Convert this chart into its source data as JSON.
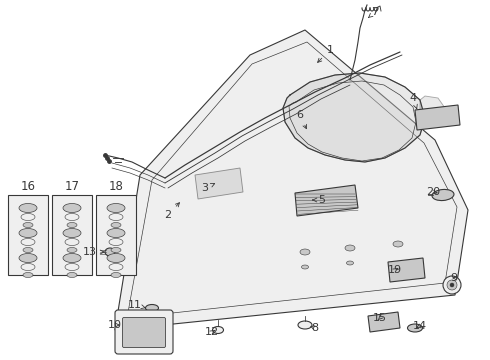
{
  "bg_color": "#ffffff",
  "line_color": "#383838",
  "fill_color": "#efefef",
  "dark_fill": "#c8c8c8",
  "lw": 0.8,
  "label_fontsize": 7.5
}
